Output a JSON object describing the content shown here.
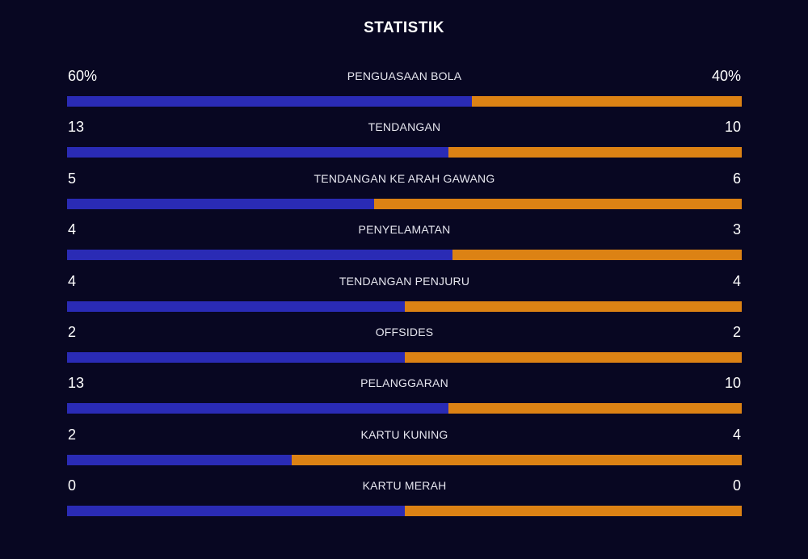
{
  "title": "STATISTIK",
  "colors": {
    "background": "#080722",
    "home_bar": "#2a2bb5",
    "away_bar": "#dc8214"
  },
  "stats": [
    {
      "label": "PENGUASAAN BOLA",
      "home": "60%",
      "away": "40%",
      "home_share": 0.6
    },
    {
      "label": "TENDANGAN",
      "home": "13",
      "away": "10",
      "home_share": 0.565
    },
    {
      "label": "TENDANGAN KE ARAH GAWANG",
      "home": "5",
      "away": "6",
      "home_share": 0.455
    },
    {
      "label": "PENYELAMATAN",
      "home": "4",
      "away": "3",
      "home_share": 0.571
    },
    {
      "label": "TENDANGAN PENJURU",
      "home": "4",
      "away": "4",
      "home_share": 0.5
    },
    {
      "label": "OFFSIDES",
      "home": "2",
      "away": "2",
      "home_share": 0.5
    },
    {
      "label": "PELANGGARAN",
      "home": "13",
      "away": "10",
      "home_share": 0.565
    },
    {
      "label": "KARTU KUNING",
      "home": "2",
      "away": "4",
      "home_share": 0.333
    },
    {
      "label": "KARTU MERAH",
      "home": "0",
      "away": "0",
      "home_share": 0.5
    }
  ]
}
